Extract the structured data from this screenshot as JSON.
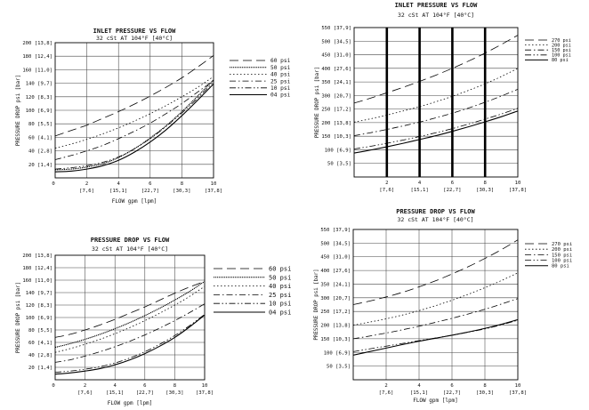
{
  "chart_data": [
    {
      "type": "line",
      "title": "INLET PRESSURE VS FLOW",
      "subtitle": "32 cSt AT 104°F [40°C]",
      "xlabel": "FLOW gpm [lpm]",
      "ylabel": "PRESSURE DROP psi [bar]",
      "xlim": [
        0,
        10
      ],
      "ylim": [
        0,
        200
      ],
      "x_ticks": [
        {
          "value": 2,
          "label": "2",
          "sub": "[7,6]"
        },
        {
          "value": 4,
          "label": "4",
          "sub": "[15,1]"
        },
        {
          "value": 6,
          "label": "6",
          "sub": "[22,7]"
        },
        {
          "value": 8,
          "label": "8",
          "sub": "[30,3]"
        },
        {
          "value": 10,
          "label": "10",
          "sub": "[37,8]"
        }
      ],
      "x_zero_label": "0",
      "y_ticks": [
        {
          "value": 20,
          "label": "20 [1,4]"
        },
        {
          "value": 40,
          "label": "40 [2,8]"
        },
        {
          "value": 60,
          "label": "60 [4,1]"
        },
        {
          "value": 80,
          "label": "80 [5,5]"
        },
        {
          "value": 100,
          "label": "100 [6,9]"
        },
        {
          "value": 120,
          "label": "120 [8,3]"
        },
        {
          "value": 140,
          "label": "140 [9,7]"
        },
        {
          "value": 160,
          "label": "160 [11,0]"
        },
        {
          "value": 180,
          "label": "180 [12,4]"
        },
        {
          "value": 200,
          "label": "200 [13,8]"
        }
      ],
      "grid": true,
      "legend_position": "right",
      "x": [
        0,
        1,
        2,
        3,
        4,
        5,
        6,
        7,
        8,
        9,
        10
      ],
      "series": [
        {
          "name": "60 psi",
          "style": "longdash",
          "values": [
            62,
            70,
            78,
            88,
            98,
            109,
            121,
            134,
            148,
            164,
            181
          ]
        },
        {
          "name": "50 psi",
          "style": "dense",
          "values": [
            12,
            13,
            16,
            21,
            30,
            43,
            59,
            77,
            98,
            121,
            145
          ]
        },
        {
          "name": "40 psi",
          "style": "dotted",
          "values": [
            44,
            50,
            57,
            65,
            74,
            84,
            95,
            107,
            120,
            134,
            150
          ]
        },
        {
          "name": "25 psi",
          "style": "dashdot",
          "values": [
            27,
            33,
            40,
            48,
            58,
            69,
            81,
            95,
            110,
            127,
            144
          ]
        },
        {
          "name": "10 psi",
          "style": "dashdotdot",
          "values": [
            13,
            15,
            18,
            23,
            31,
            43,
            58,
            76,
            96,
            118,
            142
          ]
        },
        {
          "name": "04 psi",
          "style": "solid",
          "values": [
            9,
            10,
            13,
            18,
            26,
            38,
            53,
            71,
            92,
            115,
            139
          ]
        }
      ]
    },
    {
      "type": "line",
      "title": "INLET PRESSURE VS FLOW",
      "subtitle": "32 cSt AT 104°F [40°C]",
      "xlabel": "",
      "ylabel": "PRESSURE DROP psi [bar]",
      "xlim": [
        0,
        10
      ],
      "ylim": [
        0,
        550
      ],
      "x_ticks": [
        {
          "value": 2,
          "label": "2",
          "sub": "[7,6]"
        },
        {
          "value": 4,
          "label": "4",
          "sub": "[15,1]"
        },
        {
          "value": 6,
          "label": "6",
          "sub": "[22,7]"
        },
        {
          "value": 8,
          "label": "8",
          "sub": "[30,3]"
        },
        {
          "value": 10,
          "label": "10",
          "sub": "[37,8]"
        }
      ],
      "x_zero_label": "",
      "y_ticks": [
        {
          "value": 50,
          "label": "50 [3,5]"
        },
        {
          "value": 100,
          "label": "100 [6,9]"
        },
        {
          "value": 150,
          "label": "150 [10,3]"
        },
        {
          "value": 200,
          "label": "200 [13,8]"
        },
        {
          "value": 250,
          "label": "250 [17,2]"
        },
        {
          "value": 300,
          "label": "300 [20,7]"
        },
        {
          "value": 350,
          "label": "350 [24,1]"
        },
        {
          "value": 400,
          "label": "400 [27,6]"
        },
        {
          "value": 450,
          "label": "450 [31,0]"
        },
        {
          "value": 500,
          "label": "500 [34,5]"
        },
        {
          "value": 550,
          "label": "550 [37,9]"
        }
      ],
      "grid": true,
      "heavy_verticals": [
        2,
        4,
        6,
        8
      ],
      "legend_position": "right",
      "x": [
        0,
        1,
        2,
        3,
        4,
        5,
        6,
        7,
        8,
        9,
        10
      ],
      "series": [
        {
          "name": "270 psi",
          "style": "longdash",
          "values": [
            272,
            290,
            310,
            330,
            352,
            375,
            400,
            427,
            456,
            488,
            522
          ]
        },
        {
          "name": "200 psi",
          "style": "dotted",
          "values": [
            202,
            214,
            228,
            243,
            259,
            277,
            297,
            319,
            343,
            370,
            400
          ]
        },
        {
          "name": "150 psi",
          "style": "dashdot",
          "values": [
            152,
            163,
            175,
            188,
            202,
            218,
            235,
            254,
            275,
            298,
            323
          ]
        },
        {
          "name": "100 psi",
          "style": "dashdotdot",
          "values": [
            103,
            113,
            124,
            136,
            149,
            163,
            178,
            195,
            213,
            232,
            253
          ]
        },
        {
          "name": "80 psi",
          "style": "solid",
          "values": [
            88,
            99,
            111,
            124,
            138,
            152,
            168,
            185,
            203,
            222,
            243
          ]
        }
      ]
    },
    {
      "type": "line",
      "title": "PRESSURE DROP VS FLOW",
      "subtitle": "32 cSt AT 104°F [40°C]",
      "xlabel": "FLOW gpm [lpm]",
      "ylabel": "PRESSURE DROP psi [bar]",
      "xlim": [
        0,
        10
      ],
      "ylim": [
        0,
        200
      ],
      "x_ticks": [
        {
          "value": 2,
          "label": "2",
          "sub": "[7,6]"
        },
        {
          "value": 4,
          "label": "4",
          "sub": "[15,1]"
        },
        {
          "value": 6,
          "label": "6",
          "sub": "[22,7]"
        },
        {
          "value": 8,
          "label": "8",
          "sub": "[30,3]"
        },
        {
          "value": 10,
          "label": "10",
          "sub": "[37,8]"
        }
      ],
      "x_zero_label": "0",
      "y_ticks": [
        {
          "value": 20,
          "label": "20 [1,4]"
        },
        {
          "value": 40,
          "label": "40 [2,8]"
        },
        {
          "value": 60,
          "label": "60 [4,1]"
        },
        {
          "value": 80,
          "label": "80 [5,5]"
        },
        {
          "value": 100,
          "label": "100 [6,9]"
        },
        {
          "value": 120,
          "label": "120 [8,3]"
        },
        {
          "value": 140,
          "label": "140 [9,7]"
        },
        {
          "value": 160,
          "label": "160 [11,0]"
        },
        {
          "value": 180,
          "label": "180 [12,4]"
        },
        {
          "value": 200,
          "label": "200 [13,8]"
        }
      ],
      "grid": true,
      "legend_position": "right",
      "x": [
        0,
        1,
        2,
        3,
        4,
        5,
        6,
        7,
        8,
        9,
        10
      ],
      "series": [
        {
          "name": "60 psi",
          "style": "longdash",
          "values": [
            68,
            73,
            80,
            88,
            97,
            107,
            117,
            128,
            139,
            149,
            158
          ]
        },
        {
          "name": "50 psi",
          "style": "dense",
          "values": [
            52,
            58,
            65,
            73,
            82,
            92,
            103,
            115,
            128,
            142,
            158
          ]
        },
        {
          "name": "40 psi",
          "style": "dotted",
          "values": [
            44,
            50,
            57,
            65,
            74,
            84,
            95,
            107,
            120,
            134,
            150
          ]
        },
        {
          "name": "25 psi",
          "style": "dashdot",
          "values": [
            28,
            32,
            38,
            45,
            53,
            62,
            72,
            83,
            95,
            108,
            122
          ]
        },
        {
          "name": "10 psi",
          "style": "dashdotdot",
          "values": [
            12,
            14,
            17,
            21,
            27,
            35,
            45,
            57,
            71,
            87,
            105
          ]
        },
        {
          "name": "04 psi",
          "style": "solid",
          "values": [
            9,
            11,
            14,
            18,
            24,
            32,
            42,
            54,
            68,
            85,
            104
          ]
        }
      ]
    },
    {
      "type": "line",
      "title": "PRESSURE DROP VS FLOW",
      "subtitle": "32 cSt AT 104°F [40°C]",
      "xlabel": "FLOW gpm [lpm]",
      "ylabel": "PRESSURE DROP psi [bar]",
      "xlim": [
        0,
        10
      ],
      "ylim": [
        0,
        550
      ],
      "x_ticks": [
        {
          "value": 2,
          "label": "2",
          "sub": "[7,6]"
        },
        {
          "value": 4,
          "label": "4",
          "sub": "[15,1]"
        },
        {
          "value": 6,
          "label": "6",
          "sub": "[22,7]"
        },
        {
          "value": 8,
          "label": "8",
          "sub": "[30,3]"
        },
        {
          "value": 10,
          "label": "10",
          "sub": "[37,8]"
        }
      ],
      "x_zero_label": "",
      "y_ticks": [
        {
          "value": 50,
          "label": "50 [3,5]"
        },
        {
          "value": 100,
          "label": "100 [6,9]"
        },
        {
          "value": 150,
          "label": "150 [10,3]"
        },
        {
          "value": 200,
          "label": "200 [13,8]"
        },
        {
          "value": 250,
          "label": "250 [17,2]"
        },
        {
          "value": 300,
          "label": "300 [20,7]"
        },
        {
          "value": 350,
          "label": "350 [24,1]"
        },
        {
          "value": 400,
          "label": "400 [27,6]"
        },
        {
          "value": 450,
          "label": "450 [31,0]"
        },
        {
          "value": 500,
          "label": "500 [34,5]"
        },
        {
          "value": 550,
          "label": "550 [37,9]"
        }
      ],
      "grid": true,
      "legend_position": "right",
      "x": [
        0,
        1,
        2,
        3,
        4,
        5,
        6,
        7,
        8,
        9,
        10
      ],
      "series": [
        {
          "name": "270 psi",
          "style": "longdash",
          "values": [
            275,
            288,
            303,
            320,
            340,
            362,
            387,
            414,
            444,
            476,
            512
          ]
        },
        {
          "name": "200 psi",
          "style": "dotted",
          "values": [
            200,
            211,
            223,
            237,
            253,
            271,
            291,
            313,
            337,
            363,
            391
          ]
        },
        {
          "name": "150 psi",
          "style": "dashdot",
          "values": [
            150,
            160,
            171,
            183,
            196,
            210,
            225,
            241,
            258,
            277,
            297
          ]
        },
        {
          "name": "100 psi",
          "style": "dashdotdot",
          "values": [
            103,
            113,
            123,
            133,
            143,
            153,
            163,
            174,
            186,
            201,
            218
          ]
        },
        {
          "name": "80 psi",
          "style": "solid",
          "values": [
            90,
            103,
            116,
            129,
            141,
            152,
            163,
            175,
            188,
            203,
            220
          ]
        }
      ]
    }
  ]
}
